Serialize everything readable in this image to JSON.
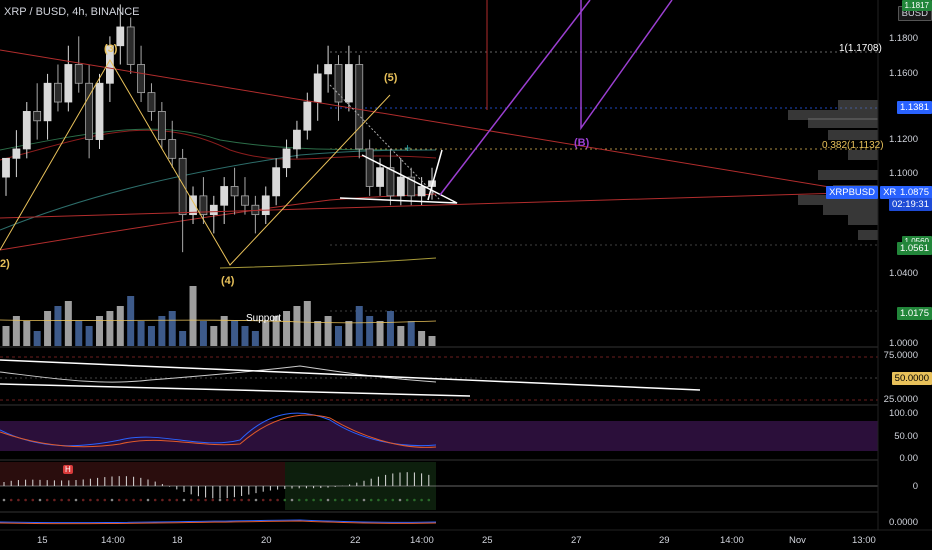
{
  "header": {
    "symbol_title": "XRP / BUSD, 4h, BINANCE",
    "quote_badge": "BUSD"
  },
  "colors": {
    "background": "#000000",
    "up_candle": "#d9d9d9",
    "down_candle": "#2b2b2b",
    "volume_blue": "#3d5a8a",
    "volume_grey": "#9e9e9e",
    "trend_red": "#b22d2d",
    "wave_yellow": "#e8c15a",
    "purple": "#9b3fd1",
    "price_tag_blue": "#2962ff",
    "price_tag_green": "#22863a",
    "osc_band": "#2b0f3a"
  },
  "price_axis": {
    "labels": [
      "1.1800",
      "1.1600",
      "1.1400",
      "1.1200",
      "1.1000",
      "1.0400",
      "1.0000"
    ],
    "tags": {
      "top_green": "1.1817",
      "level_1381": "1.1381",
      "current_symbol": "XRPBUSD",
      "current_price": "1.0875",
      "countdown": "02:19:31",
      "level_0560": "1.0560",
      "level_0561": "1.0561",
      "level_0175": "1.0175"
    }
  },
  "fib_labels": {
    "level_1": "1(1.1708)",
    "level_0382": "0.382(1.1132)"
  },
  "waves": {
    "w2": "2)",
    "w3": "(3)",
    "w4": "(4)",
    "w5": "(5)",
    "wB": "(B)"
  },
  "annotations": {
    "support": "Support",
    "macd_marker": "H"
  },
  "osc_axes": {
    "rsi": [
      "75.0000",
      "50.0000",
      "25.0000"
    ],
    "stoch": [
      "100.00",
      "50.00",
      "0.00"
    ],
    "momentum": [
      "0"
    ],
    "last": [
      "0.0000"
    ]
  },
  "time_axis": [
    "15",
    "14:00",
    "18",
    "20",
    "22",
    "14:00",
    "25",
    "27",
    "29",
    "14:00",
    "Nov",
    "13:00"
  ],
  "chart_data": {
    "type": "candlestick",
    "symbol": "XRP / BUSD",
    "interval": "4h",
    "exchange": "BINANCE",
    "ylim": [
      1.0,
      1.1817
    ],
    "ohlc": [
      [
        1.09,
        1.1,
        1.08,
        1.1
      ],
      [
        1.1,
        1.115,
        1.09,
        1.105
      ],
      [
        1.105,
        1.13,
        1.1,
        1.125
      ],
      [
        1.125,
        1.14,
        1.11,
        1.12
      ],
      [
        1.12,
        1.145,
        1.11,
        1.14
      ],
      [
        1.14,
        1.15,
        1.125,
        1.13
      ],
      [
        1.13,
        1.16,
        1.125,
        1.15
      ],
      [
        1.15,
        1.165,
        1.135,
        1.14
      ],
      [
        1.14,
        1.15,
        1.1,
        1.11
      ],
      [
        1.11,
        1.145,
        1.105,
        1.14
      ],
      [
        1.14,
        1.165,
        1.13,
        1.16
      ],
      [
        1.16,
        1.182,
        1.15,
        1.17
      ],
      [
        1.17,
        1.175,
        1.145,
        1.15
      ],
      [
        1.15,
        1.16,
        1.13,
        1.135
      ],
      [
        1.135,
        1.14,
        1.12,
        1.125
      ],
      [
        1.125,
        1.13,
        1.105,
        1.11
      ],
      [
        1.11,
        1.12,
        1.095,
        1.1
      ],
      [
        1.1,
        1.105,
        1.05,
        1.07
      ],
      [
        1.07,
        1.085,
        1.065,
        1.08
      ],
      [
        1.08,
        1.09,
        1.065,
        1.07
      ],
      [
        1.07,
        1.08,
        1.06,
        1.075
      ],
      [
        1.075,
        1.09,
        1.065,
        1.085
      ],
      [
        1.085,
        1.095,
        1.07,
        1.08
      ],
      [
        1.08,
        1.09,
        1.07,
        1.075
      ],
      [
        1.075,
        1.08,
        1.06,
        1.07
      ],
      [
        1.07,
        1.085,
        1.065,
        1.08
      ],
      [
        1.08,
        1.1,
        1.075,
        1.095
      ],
      [
        1.095,
        1.11,
        1.09,
        1.105
      ],
      [
        1.105,
        1.12,
        1.1,
        1.115
      ],
      [
        1.115,
        1.135,
        1.11,
        1.13
      ],
      [
        1.13,
        1.15,
        1.12,
        1.145
      ],
      [
        1.145,
        1.16,
        1.135,
        1.15
      ],
      [
        1.15,
        1.155,
        1.12,
        1.13
      ],
      [
        1.13,
        1.16,
        1.125,
        1.15
      ],
      [
        1.15,
        1.155,
        1.1,
        1.105
      ],
      [
        1.105,
        1.11,
        1.08,
        1.085
      ],
      [
        1.085,
        1.1,
        1.08,
        1.095
      ],
      [
        1.095,
        1.105,
        1.075,
        1.08
      ],
      [
        1.08,
        1.1,
        1.075,
        1.09
      ],
      [
        1.09,
        1.095,
        1.075,
        1.08
      ],
      [
        1.08,
        1.09,
        1.075,
        1.085
      ],
      [
        1.085,
        1.095,
        1.078,
        1.088
      ]
    ],
    "volume": [
      4,
      6,
      5,
      3,
      7,
      8,
      9,
      5,
      4,
      6,
      7,
      8,
      10,
      5,
      4,
      6,
      7,
      3,
      12,
      5,
      4,
      6,
      5,
      4,
      3,
      5,
      6,
      7,
      8,
      9,
      5,
      6,
      4,
      5,
      8,
      6,
      5,
      7,
      4,
      5,
      3,
      2
    ]
  }
}
